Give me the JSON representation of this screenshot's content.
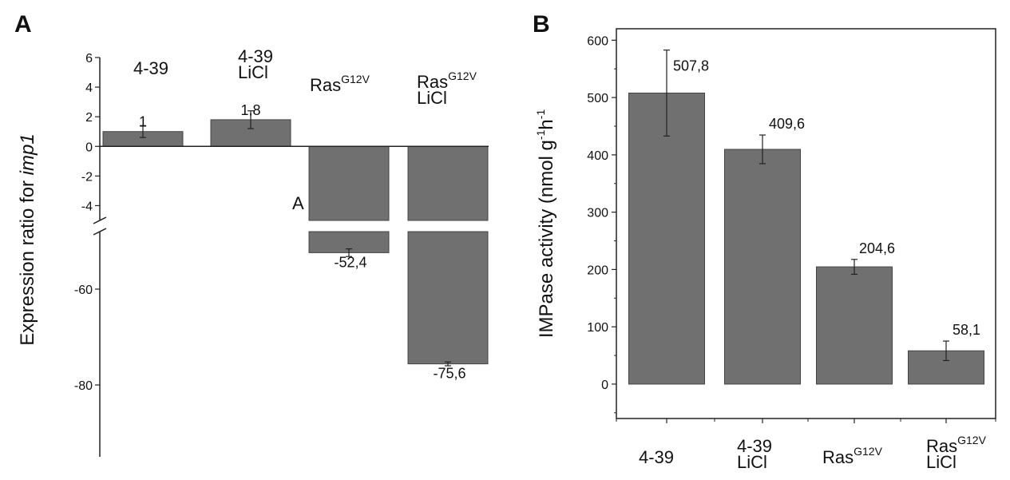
{
  "chart_data": [
    {
      "panel": "A",
      "type": "bar",
      "ylabel": {
        "prefix": "Expression ratio for ",
        "italic": "imp1"
      },
      "y_broken": true,
      "segments": [
        {
          "ylim": [
            -5,
            6
          ],
          "ticks": [
            6,
            4,
            2,
            0,
            -2,
            -4
          ]
        },
        {
          "ylim": [
            -95,
            -48
          ],
          "ticks": [
            -60,
            -80
          ]
        }
      ],
      "categories": [
        {
          "main": "4-39",
          "sup": "",
          "sub": ""
        },
        {
          "main": "4-39",
          "sup": "",
          "sub": "LiCl"
        },
        {
          "main": "Ras",
          "sup": "G12V",
          "sub": ""
        },
        {
          "main": "Ras",
          "sup": "G12V",
          "sub": "LiCl"
        }
      ],
      "values": [
        1,
        1.8,
        -52.4,
        -75.6
      ],
      "errors": [
        0.4,
        0.6,
        0.8,
        0.4
      ],
      "value_labels": [
        "1",
        "1,8",
        "-52,4",
        "-75,6"
      ],
      "annotation": "A",
      "bar_color": "#707070"
    },
    {
      "panel": "B",
      "type": "bar",
      "ylabel": {
        "prefix": "IMPase activity (nmol g",
        "sup1": "-1",
        "mid": "h",
        "sup2": "-1"
      },
      "ylim": [
        -60,
        620
      ],
      "ticks": [
        0,
        100,
        200,
        300,
        400,
        500,
        600
      ],
      "categories": [
        {
          "main": "4-39",
          "sup": "",
          "sub": ""
        },
        {
          "main": "4-39",
          "sup": "",
          "sub": "LiCl"
        },
        {
          "main": "Ras",
          "sup": "G12V",
          "sub": ""
        },
        {
          "main": "Ras",
          "sup": "G12V",
          "sub": "LiCl"
        }
      ],
      "values": [
        507.8,
        409.6,
        204.6,
        58.1
      ],
      "errors": [
        75,
        25,
        13,
        17
      ],
      "value_labels": [
        "507,8",
        "409,6",
        "204,6",
        "58,1"
      ],
      "bar_color": "#707070"
    }
  ]
}
